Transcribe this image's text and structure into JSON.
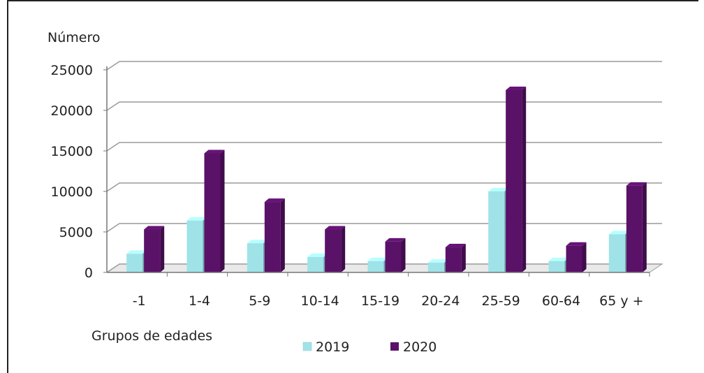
{
  "chart_data": {
    "type": "bar",
    "title": "",
    "ylabel": "Número",
    "xlabel": "Grupos de edades",
    "categories": [
      "-1",
      "1-4",
      "5-9",
      "10-14",
      "15-19",
      "20-24",
      "25-59",
      "60-64",
      "65 y +"
    ],
    "series": [
      {
        "name": "2019",
        "color": "#9fe3e8",
        "values": [
          2300,
          6400,
          3600,
          1900,
          1400,
          1200,
          10000,
          1400,
          4700
        ]
      },
      {
        "name": "2020",
        "color": "#5a1168",
        "values": [
          5300,
          14700,
          8700,
          5300,
          3800,
          3100,
          22500,
          3300,
          10700
        ]
      }
    ],
    "ylim": [
      0,
      25000
    ],
    "yticks": [
      "0",
      "5000",
      "10000",
      "15000",
      "20000",
      "25000"
    ],
    "grid": true,
    "legend_position": "bottom"
  }
}
